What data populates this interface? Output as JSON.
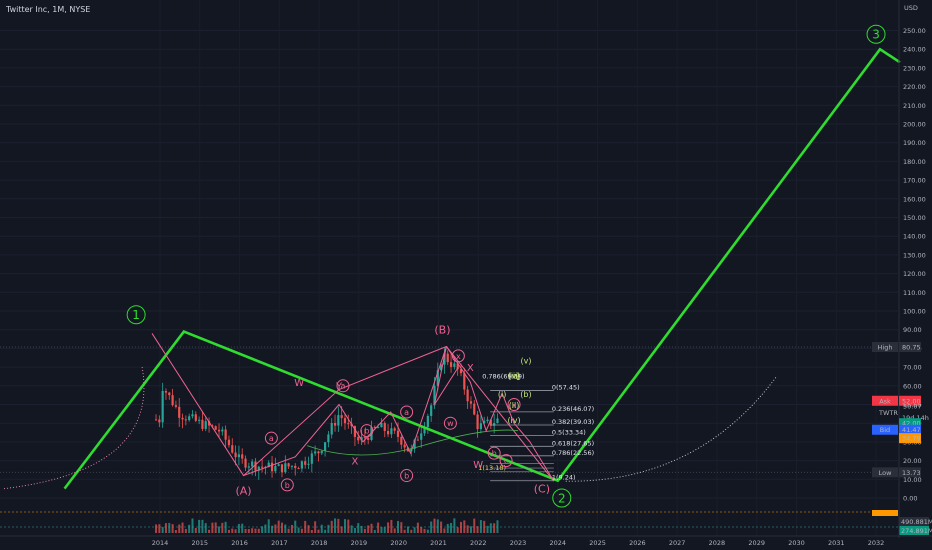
{
  "header": {
    "title": "Twitter Inc, 1M, NYSE"
  },
  "price_axis": {
    "currency": "USD",
    "ticks": [
      "250.00",
      "240.00",
      "230.00",
      "220.00",
      "210.00",
      "200.00",
      "190.00",
      "180.00",
      "170.00",
      "160.00",
      "150.00",
      "140.00",
      "130.00",
      "120.00",
      "110.00",
      "100.00",
      "90.00",
      "80.00",
      "70.00",
      "60.00",
      "50.00",
      "40.00",
      "30.00",
      "20.00",
      "10.00",
      "0.00"
    ],
    "high": {
      "label": "High",
      "value": "80.75",
      "color": "#2a2e39"
    },
    "ask": {
      "label": "Ask",
      "value": "52.00",
      "color": "#f23645"
    },
    "last": {
      "value": "50.07",
      "symbol": "TWTR",
      "countdown": "19d 14h"
    },
    "tag_cyan": {
      "value": "42.00",
      "color": "#089981"
    },
    "bid": {
      "label": "Bid",
      "value": "41.47",
      "color": "#2962ff"
    },
    "tag_orange": {
      "value": "34.79",
      "color": "#ff9800"
    },
    "low": {
      "label": "Low",
      "value": "13.73",
      "color": "#2a2e39"
    },
    "vol1": "490.881M",
    "vol2": "274.891M"
  },
  "time_axis": {
    "labels": [
      "2014",
      "2015",
      "2016",
      "2017",
      "2018",
      "2019",
      "2020",
      "2021",
      "2022",
      "2023",
      "2024",
      "2025",
      "2026",
      "2027",
      "2028",
      "2029",
      "2030",
      "2031",
      "2032"
    ]
  },
  "fib": {
    "levels": [
      "0(57.45)",
      "0.236(46.07)",
      "0.382(39.03)",
      "0.5(33.34)",
      "0.618(27.65)",
      "0.786(22.56)",
      "1(9.24)"
    ],
    "upper": "0.786(69.39)",
    "lower": "1(13.18)"
  },
  "wave_labels": {
    "primary": [
      "1",
      "2",
      "3"
    ],
    "red_abc": [
      "(A)",
      "(B)",
      "(C)"
    ],
    "red_small": [
      "a",
      "b",
      "a",
      "b",
      "W",
      "X",
      "Y",
      "a",
      "b",
      "x",
      "w",
      "x",
      "b",
      "c",
      "W",
      "X"
    ],
    "green_small": [
      "(i)",
      "(ii)",
      "(iii)",
      "(iv)",
      "(v)",
      "(v)",
      "c",
      "(b)"
    ]
  },
  "colors": {
    "primary_wave": "#2fdc2f",
    "pink": "#f06292",
    "background": "#131722"
  },
  "chart_data": {
    "type": "candlestick",
    "title": "Twitter Inc, 1M, NYSE",
    "ylim": [
      0,
      250
    ],
    "x_range": [
      2013.8,
      2032.6
    ],
    "primary_wave_path": [
      {
        "x": 2011.6,
        "y": 5
      },
      {
        "x": 2014.6,
        "y": 89
      },
      {
        "x": 2024.0,
        "y": 9.24
      },
      {
        "x": 2032.1,
        "y": 240
      },
      {
        "x": 2032.6,
        "y": 233
      }
    ],
    "monthly_close_approx": [
      {
        "x": 2014.0,
        "y": 62
      },
      {
        "x": 2014.5,
        "y": 45
      },
      {
        "x": 2015.0,
        "y": 40
      },
      {
        "x": 2015.5,
        "y": 36
      },
      {
        "x": 2016.0,
        "y": 20
      },
      {
        "x": 2016.5,
        "y": 17
      },
      {
        "x": 2017.0,
        "y": 16
      },
      {
        "x": 2017.5,
        "y": 18
      },
      {
        "x": 2018.0,
        "y": 25
      },
      {
        "x": 2018.5,
        "y": 45
      },
      {
        "x": 2019.0,
        "y": 30
      },
      {
        "x": 2019.5,
        "y": 38
      },
      {
        "x": 2020.0,
        "y": 33
      },
      {
        "x": 2020.3,
        "y": 24
      },
      {
        "x": 2020.8,
        "y": 48
      },
      {
        "x": 2021.1,
        "y": 77
      },
      {
        "x": 2021.5,
        "y": 68
      },
      {
        "x": 2022.0,
        "y": 38
      },
      {
        "x": 2022.3,
        "y": 40
      },
      {
        "x": 2022.5,
        "y": 42
      }
    ]
  }
}
